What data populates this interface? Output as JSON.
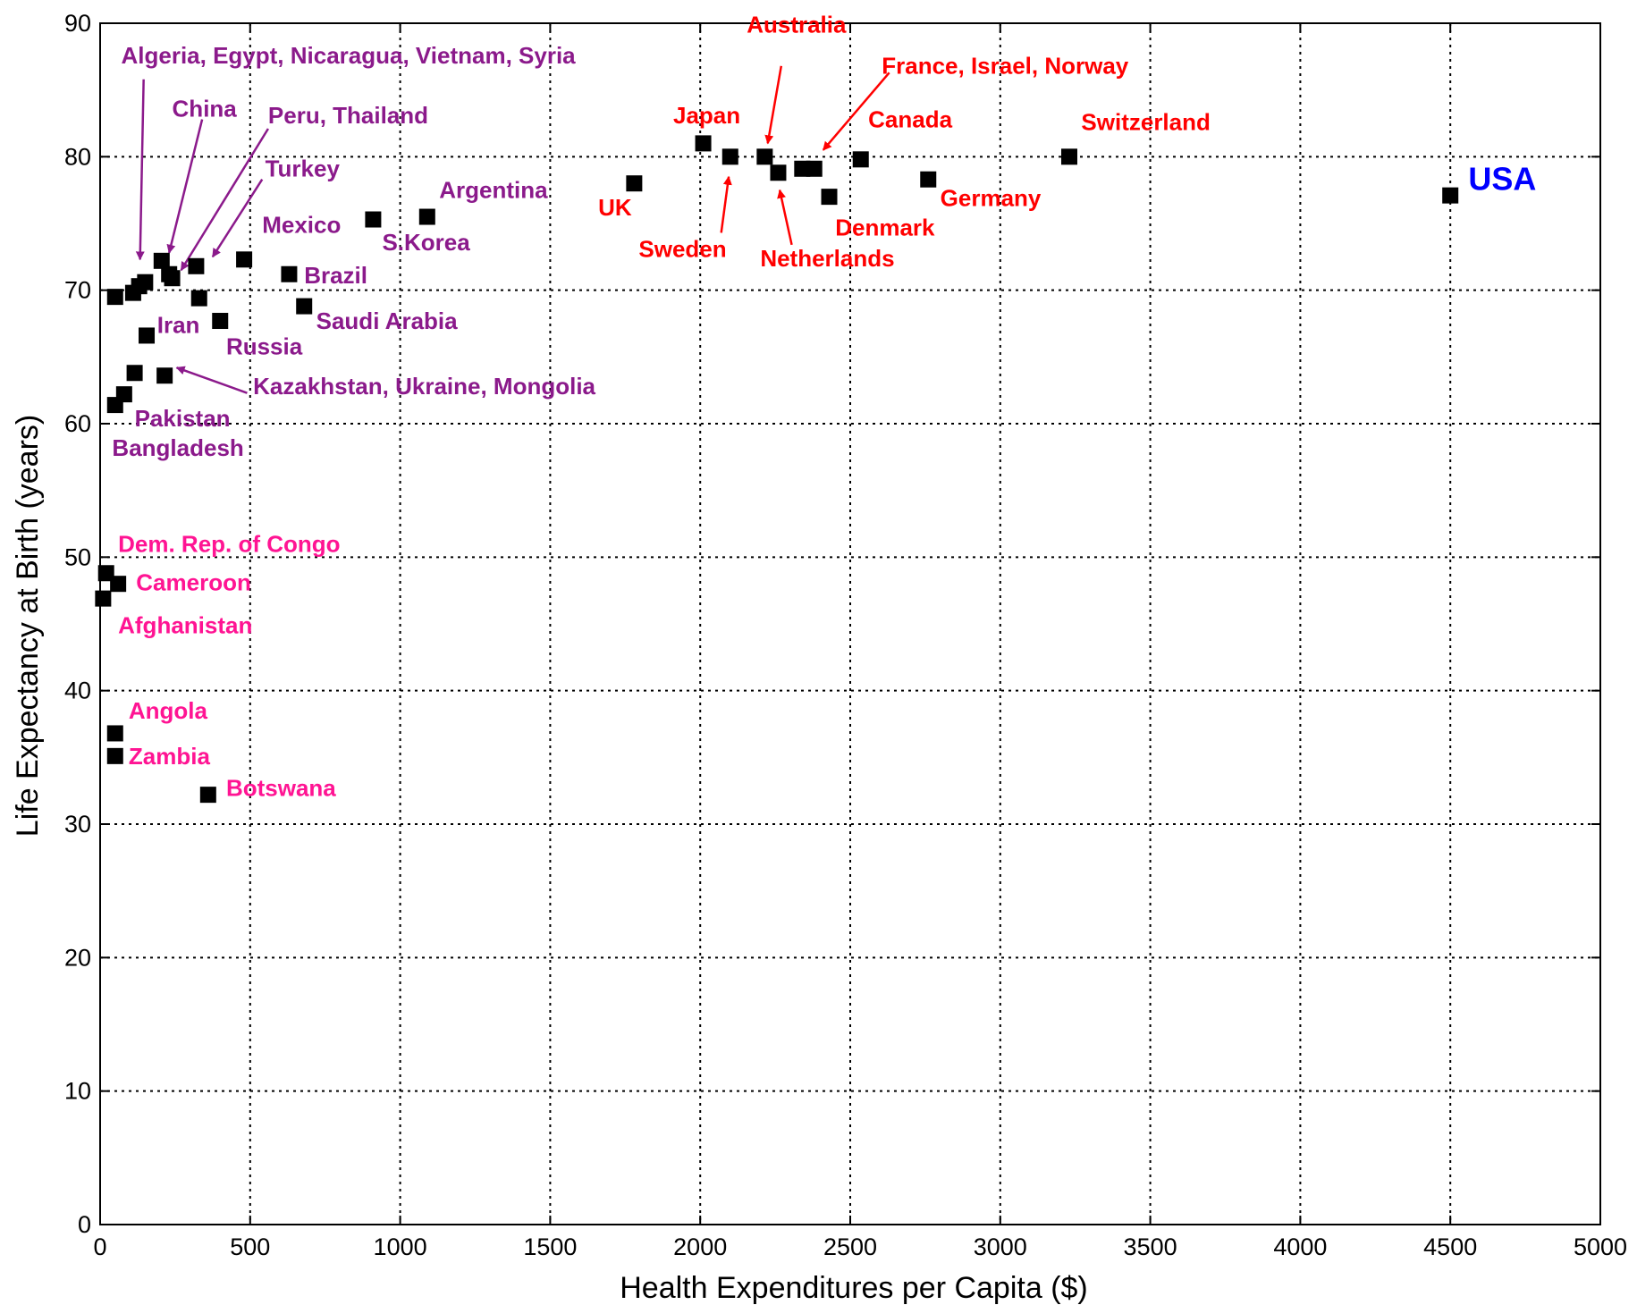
{
  "chart_data": {
    "type": "scatter",
    "xlabel": "Health Expenditures per Capita ($)",
    "ylabel": "Life Expectancy at Birth (years)",
    "xlim": [
      0,
      5000
    ],
    "ylim": [
      0,
      90
    ],
    "x_ticks": [
      0,
      500,
      1000,
      1500,
      2000,
      2500,
      3000,
      3500,
      4000,
      4500,
      5000
    ],
    "y_ticks": [
      0,
      10,
      20,
      30,
      40,
      50,
      60,
      70,
      80,
      90
    ],
    "grid": true,
    "marker": "square",
    "colors": {
      "marker": "#000000",
      "high_income_labels": "#ff0000",
      "middle_income_labels": "#8b1a8b",
      "low_income_labels": "#ff1493",
      "usa_label": "#0000ff"
    },
    "points": [
      {
        "x": 2010,
        "y": 81
      },
      {
        "x": 2100,
        "y": 80
      },
      {
        "x": 2215,
        "y": 80
      },
      {
        "x": 2260,
        "y": 78.8
      },
      {
        "x": 2340,
        "y": 79.1
      },
      {
        "x": 2380,
        "y": 79.1
      },
      {
        "x": 2430,
        "y": 77
      },
      {
        "x": 2535,
        "y": 79.8
      },
      {
        "x": 2760,
        "y": 78.3
      },
      {
        "x": 3230,
        "y": 80
      },
      {
        "x": 4500,
        "y": 77.1
      },
      {
        "x": 1780,
        "y": 78
      },
      {
        "x": 1090,
        "y": 75.5
      },
      {
        "x": 910,
        "y": 75.3
      },
      {
        "x": 630,
        "y": 71.2
      },
      {
        "x": 680,
        "y": 68.8
      },
      {
        "x": 480,
        "y": 72.3
      },
      {
        "x": 400,
        "y": 67.7
      },
      {
        "x": 330,
        "y": 69.4
      },
      {
        "x": 320,
        "y": 71.8
      },
      {
        "x": 230,
        "y": 71.2
      },
      {
        "x": 240,
        "y": 70.9
      },
      {
        "x": 205,
        "y": 72.2
      },
      {
        "x": 150,
        "y": 70.6
      },
      {
        "x": 130,
        "y": 70.3
      },
      {
        "x": 110,
        "y": 69.8
      },
      {
        "x": 50,
        "y": 69.5
      },
      {
        "x": 155,
        "y": 66.6
      },
      {
        "x": 115,
        "y": 63.8
      },
      {
        "x": 215,
        "y": 63.6
      },
      {
        "x": 80,
        "y": 62.2
      },
      {
        "x": 50,
        "y": 61.4
      },
      {
        "x": 20,
        "y": 48.8
      },
      {
        "x": 60,
        "y": 48
      },
      {
        "x": 10,
        "y": 46.9
      },
      {
        "x": 50,
        "y": 36.8
      },
      {
        "x": 50,
        "y": 35.1
      },
      {
        "x": 360,
        "y": 32.2
      }
    ],
    "labels": [
      {
        "text": "Japan",
        "x": 1910,
        "y": 82.5,
        "group": "high"
      },
      {
        "text": "Australia",
        "x": 2155,
        "y": 89.3,
        "group": "high"
      },
      {
        "text": "France, Israel, Norway",
        "x": 2605,
        "y": 86.2,
        "group": "high"
      },
      {
        "text": "Canada",
        "x": 2560,
        "y": 82.2,
        "group": "high"
      },
      {
        "text": "Switzerland",
        "x": 3270,
        "y": 82,
        "group": "high"
      },
      {
        "text": "UK",
        "x": 1660,
        "y": 75.6,
        "group": "high"
      },
      {
        "text": "Germany",
        "x": 2800,
        "y": 76.3,
        "group": "high"
      },
      {
        "text": "Denmark",
        "x": 2450,
        "y": 74.1,
        "group": "high"
      },
      {
        "text": "Sweden",
        "x": 1795,
        "y": 72.5,
        "group": "high"
      },
      {
        "text": "Netherlands",
        "x": 2200,
        "y": 71.8,
        "group": "high"
      },
      {
        "text": "USA",
        "x": 4560,
        "y": 77.5,
        "group": "usa"
      },
      {
        "text": "Algeria, Egypt, Nicaragua, Vietnam, Syria",
        "x": 70,
        "y": 87,
        "group": "middle"
      },
      {
        "text": "China",
        "x": 240,
        "y": 83,
        "group": "middle"
      },
      {
        "text": "Peru, Thailand",
        "x": 560,
        "y": 82.5,
        "group": "middle"
      },
      {
        "text": "Turkey",
        "x": 550,
        "y": 78.5,
        "group": "middle"
      },
      {
        "text": "Argentina",
        "x": 1130,
        "y": 76.9,
        "group": "middle"
      },
      {
        "text": "Mexico",
        "x": 540,
        "y": 74.3,
        "group": "middle"
      },
      {
        "text": "S.Korea",
        "x": 940,
        "y": 73,
        "group": "middle"
      },
      {
        "text": "Brazil",
        "x": 680,
        "y": 70.5,
        "group": "middle"
      },
      {
        "text": "Iran",
        "x": 190,
        "y": 66.8,
        "group": "middle"
      },
      {
        "text": "Russia",
        "x": 420,
        "y": 65.2,
        "group": "middle"
      },
      {
        "text": "Saudi Arabia",
        "x": 720,
        "y": 67.1,
        "group": "middle"
      },
      {
        "text": "Kazakhstan, Ukraine, Mongolia",
        "x": 510,
        "y": 62.2,
        "group": "middle"
      },
      {
        "text": "Pakistan",
        "x": 115,
        "y": 59.8,
        "group": "middle"
      },
      {
        "text": "Bangladesh",
        "x": 40,
        "y": 57.6,
        "group": "middle"
      },
      {
        "text": "Dem. Rep. of Congo",
        "x": 60,
        "y": 50.4,
        "group": "low"
      },
      {
        "text": "Cameroon",
        "x": 120,
        "y": 47.5,
        "group": "low"
      },
      {
        "text": "Afghanistan",
        "x": 60,
        "y": 44.3,
        "group": "low"
      },
      {
        "text": "Angola",
        "x": 95,
        "y": 37.9,
        "group": "low"
      },
      {
        "text": "Zambia",
        "x": 95,
        "y": 34.5,
        "group": "low"
      },
      {
        "text": "Botswana",
        "x": 420,
        "y": 32.1,
        "group": "low"
      }
    ],
    "arrows": [
      {
        "from": [
          145,
          85.8
        ],
        "to": [
          133,
          72.3
        ],
        "group": "middle"
      },
      {
        "from": [
          340,
          82.8
        ],
        "to": [
          230,
          72.8
        ],
        "group": "middle"
      },
      {
        "from": [
          560,
          82.1
        ],
        "to": [
          270,
          71.5
        ],
        "group": "middle"
      },
      {
        "from": [
          540,
          78.3
        ],
        "to": [
          375,
          72.5
        ],
        "group": "middle"
      },
      {
        "from": [
          490,
          62.3
        ],
        "to": [
          255,
          64.2
        ],
        "group": "middle"
      },
      {
        "from": [
          2270,
          86.8
        ],
        "to": [
          2225,
          81
        ],
        "group": "high"
      },
      {
        "from": [
          2630,
          86.3
        ],
        "to": [
          2410,
          80.5
        ],
        "group": "high"
      },
      {
        "from": [
          2070,
          74.3
        ],
        "to": [
          2095,
          78.5
        ],
        "group": "high"
      },
      {
        "from": [
          2305,
          73.4
        ],
        "to": [
          2265,
          77.5
        ],
        "group": "high"
      }
    ]
  }
}
